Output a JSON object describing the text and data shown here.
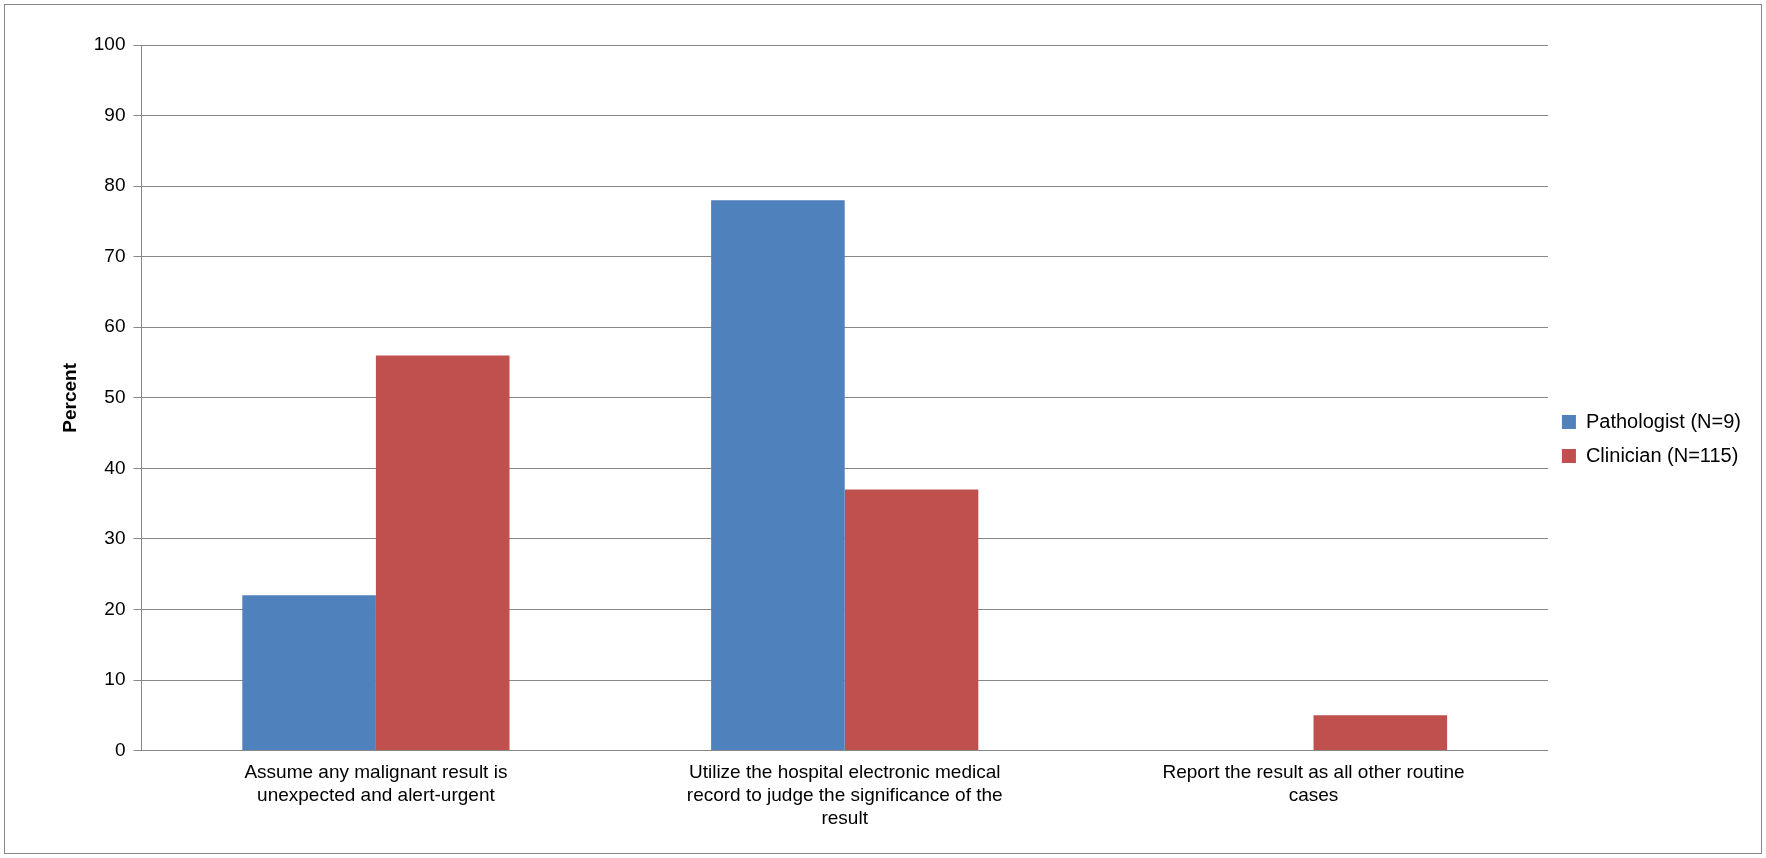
{
  "chart_data": {
    "type": "bar",
    "ylabel": "Percent",
    "categories": [
      "Assume any malignant result is unexpected and alert-urgent",
      "Utilize the hospital electronic medical record to judge the significance of the result",
      "Report the result as all other routine cases"
    ],
    "series": [
      {
        "name": "Pathologist (N=9)",
        "color": "#4f81bd",
        "values": [
          22,
          78,
          0
        ]
      },
      {
        "name": "Clinician (N=115)",
        "color": "#c0504d",
        "values": [
          56,
          37,
          5
        ]
      }
    ],
    "ylim": [
      0,
      100
    ],
    "yticks": [
      0,
      10,
      20,
      30,
      40,
      50,
      60,
      70,
      80,
      90,
      100
    ],
    "grid": "y",
    "legend": "right"
  }
}
